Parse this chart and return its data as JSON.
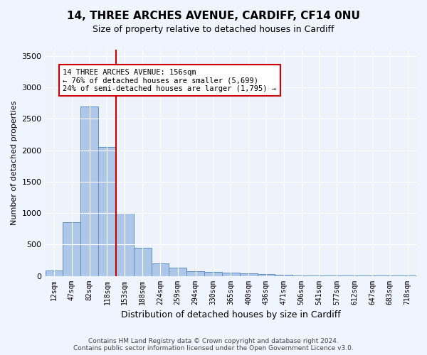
{
  "title": "14, THREE ARCHES AVENUE, CARDIFF, CF14 0NU",
  "subtitle": "Size of property relative to detached houses in Cardiff",
  "xlabel": "Distribution of detached houses by size in Cardiff",
  "ylabel": "Number of detached properties",
  "categories": [
    "12sqm",
    "47sqm",
    "82sqm",
    "118sqm",
    "153sqm",
    "188sqm",
    "224sqm",
    "259sqm",
    "294sqm",
    "330sqm",
    "365sqm",
    "400sqm",
    "436sqm",
    "471sqm",
    "506sqm",
    "541sqm",
    "577sqm",
    "612sqm",
    "647sqm",
    "683sqm",
    "718sqm"
  ],
  "values": [
    80,
    850,
    2700,
    2050,
    1000,
    450,
    200,
    125,
    75,
    60,
    50,
    40,
    25,
    20,
    8,
    5,
    3,
    2,
    1,
    1,
    1
  ],
  "bar_color": "#aec6e8",
  "bar_edge_color": "#5a8fc0",
  "vline_index": 4,
  "vline_color": "#cc0000",
  "annotation_text": "14 THREE ARCHES AVENUE: 156sqm\n← 76% of detached houses are smaller (5,699)\n24% of semi-detached houses are larger (1,795) →",
  "annotation_box_color": "#ffffff",
  "annotation_box_edge_color": "#cc0000",
  "ylim": [
    0,
    3600
  ],
  "yticks": [
    0,
    500,
    1000,
    1500,
    2000,
    2500,
    3000,
    3500
  ],
  "footnote": "Contains HM Land Registry data © Crown copyright and database right 2024.\nContains public sector information licensed under the Open Government Licence v3.0.",
  "bg_color": "#f0f4ff",
  "plot_bg_color": "#eef2fb",
  "title_fontsize": 11,
  "subtitle_fontsize": 9
}
